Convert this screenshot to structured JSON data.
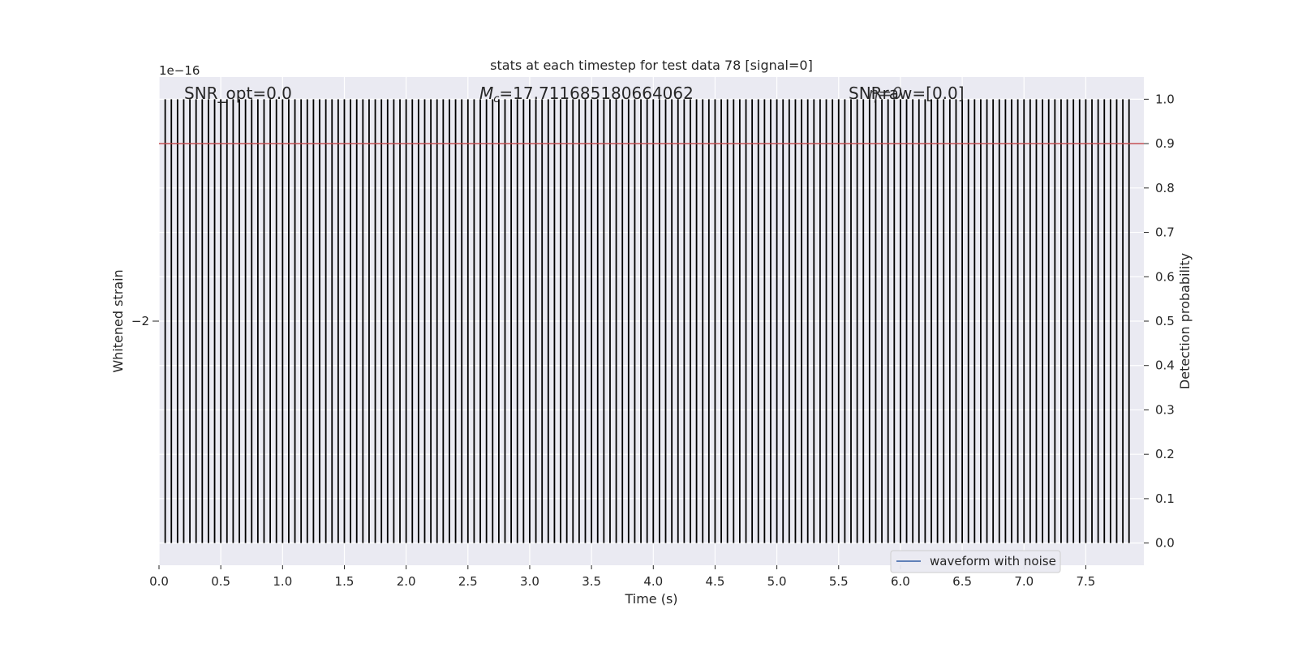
{
  "chart_data": {
    "type": "line",
    "title": "stats at each timestep for test data 78 [signal=0]",
    "xlabel": "Time (s)",
    "ylabel_left": "Whitened strain",
    "ylabel_right": "Detection probability",
    "left_axis_offset_text": "1e−16",
    "xlim": [
      0.0,
      8.0
    ],
    "x_ticks": [
      0.0,
      0.5,
      1.0,
      1.5,
      2.0,
      2.5,
      3.0,
      3.5,
      4.0,
      4.5,
      5.0,
      5.5,
      6.0,
      6.5,
      7.0,
      7.5
    ],
    "x_tick_labels": [
      "0.0",
      "0.5",
      "1.0",
      "1.5",
      "2.0",
      "2.5",
      "3.0",
      "3.5",
      "4.0",
      "4.5",
      "5.0",
      "5.5",
      "6.0",
      "6.5",
      "7.0",
      "7.5"
    ],
    "left_y_ticks": [
      "−2"
    ],
    "right_ylim": [
      -0.05,
      1.05
    ],
    "right_y_ticks": [
      0.0,
      0.1,
      0.2,
      0.3,
      0.4,
      0.5,
      0.6,
      0.7,
      0.8,
      0.9,
      1.0
    ],
    "right_y_tick_labels": [
      "0.0",
      "0.1",
      "0.2",
      "0.3",
      "0.4",
      "0.5",
      "0.6",
      "0.7",
      "0.8",
      "0.9",
      "1.0"
    ],
    "threshold": 0.9,
    "detection_spikes": {
      "start": 0.05,
      "step": 0.05,
      "count": 157,
      "low": 0.0,
      "high": 1.0
    },
    "annotations": {
      "snr_opt": "SNR_opt=0.0",
      "mc_symbol": "M",
      "mc_subscript": "c",
      "mc_value": "=17.711685180664062",
      "snr_raw": "SNRraw=[0.0]",
      "snr_raw_overlap": "η=0"
    },
    "legend": [
      {
        "label": "waveform with noise",
        "color": "#4c72b0",
        "position": "lower right"
      }
    ],
    "colors": {
      "background": "#eaeaf2",
      "grid": "#ffffff",
      "spike": "#000000",
      "threshold": "#c44e52",
      "legend_line": "#4c72b0"
    }
  }
}
